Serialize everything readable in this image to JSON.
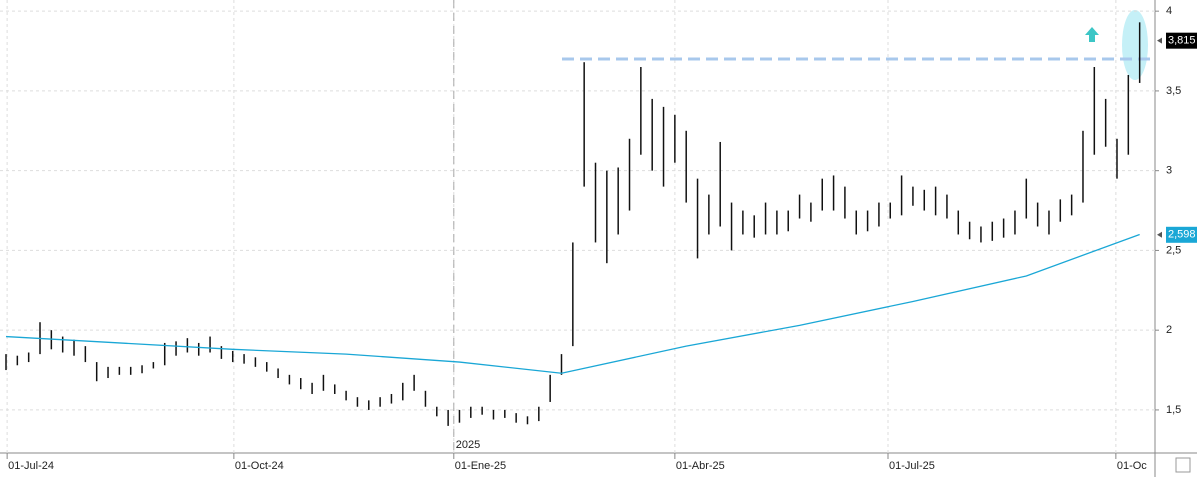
{
  "chart_data": {
    "type": "ohlc",
    "ylim": [
      1.23,
      4.07
    ],
    "yticks": [
      {
        "value": 1.5,
        "label": "1,5"
      },
      2,
      {
        "value": 2.5,
        "label": "2,5"
      },
      3,
      {
        "value": 3.5,
        "label": "3,5"
      },
      4
    ],
    "xlim": [
      0,
      101
    ],
    "xticks": [
      {
        "value": 0.1,
        "label": "01-Jul-24"
      },
      {
        "value": 20.1,
        "label": "01-Oct-24"
      },
      {
        "value": 39.5,
        "label": "01-Ene-25"
      },
      {
        "value": 59,
        "label": "01-Abr-25"
      },
      {
        "value": 77.8,
        "label": "01-Jul-25"
      },
      {
        "value": 97.9,
        "label": "01-Oc"
      }
    ],
    "year_marker": {
      "value": 39.5,
      "label": "2025"
    },
    "grid": true,
    "series": [
      {
        "color": "#111111",
        "low": [
          1.75,
          1.78,
          1.8,
          1.85,
          1.88,
          1.86,
          1.84,
          1.8,
          1.68,
          1.7,
          1.72,
          1.72,
          1.73,
          1.76,
          1.78,
          1.84,
          1.86,
          1.84,
          1.86,
          1.82,
          1.8,
          1.79,
          1.77,
          1.74,
          1.7,
          1.66,
          1.63,
          1.6,
          1.62,
          1.6,
          1.56,
          1.52,
          1.5,
          1.52,
          1.54,
          1.56,
          1.62,
          1.52,
          1.46,
          1.4,
          1.42,
          1.45,
          1.47,
          1.44,
          1.45,
          1.42,
          1.41,
          1.43,
          1.55,
          1.72,
          1.9,
          2.9,
          2.55,
          2.42,
          2.6,
          2.75,
          3.1,
          3.0,
          2.9,
          3.05,
          2.8,
          2.45,
          2.6,
          2.65,
          2.5,
          2.6,
          2.58,
          2.6,
          2.6,
          2.62,
          2.7,
          2.68,
          2.75,
          2.75,
          2.7,
          2.6,
          2.62,
          2.65,
          2.7,
          2.72,
          2.78,
          2.75,
          2.72,
          2.7,
          2.6,
          2.57,
          2.55,
          2.56,
          2.58,
          2.6,
          2.7,
          2.65,
          2.6,
          2.68,
          2.72,
          2.8,
          3.1,
          3.15,
          2.95,
          3.1,
          3.55
        ],
        "high": [
          1.85,
          1.84,
          1.86,
          2.05,
          2.0,
          1.96,
          1.94,
          1.9,
          1.8,
          1.77,
          1.77,
          1.77,
          1.78,
          1.8,
          1.92,
          1.93,
          1.95,
          1.92,
          1.96,
          1.9,
          1.87,
          1.85,
          1.83,
          1.8,
          1.76,
          1.72,
          1.7,
          1.67,
          1.72,
          1.66,
          1.62,
          1.58,
          1.56,
          1.58,
          1.6,
          1.67,
          1.72,
          1.62,
          1.52,
          1.5,
          1.5,
          1.52,
          1.52,
          1.5,
          1.5,
          1.48,
          1.46,
          1.52,
          1.72,
          1.85,
          2.55,
          3.68,
          3.05,
          3.0,
          3.02,
          3.2,
          3.65,
          3.45,
          3.4,
          3.35,
          3.25,
          2.95,
          2.85,
          3.18,
          2.8,
          2.75,
          2.72,
          2.8,
          2.75,
          2.75,
          2.85,
          2.8,
          2.95,
          2.97,
          2.9,
          2.75,
          2.75,
          2.8,
          2.8,
          2.97,
          2.9,
          2.88,
          2.9,
          2.85,
          2.75,
          2.68,
          2.65,
          2.68,
          2.7,
          2.75,
          2.95,
          2.8,
          2.75,
          2.82,
          2.85,
          3.25,
          3.65,
          3.45,
          3.2,
          3.6,
          3.93
        ]
      },
      {
        "color": "#1aa7d6",
        "x": [
          0,
          10,
          20,
          30,
          40,
          49,
          60,
          70,
          80,
          90,
          100
        ],
        "values": [
          1.96,
          1.92,
          1.88,
          1.85,
          1.8,
          1.73,
          1.9,
          2.03,
          2.18,
          2.34,
          2.6
        ]
      }
    ],
    "resistance": {
      "value": 3.7,
      "color": "#a8c8ec"
    },
    "price_labels": [
      {
        "value": 3.815,
        "label": "3,815",
        "color": "#000000"
      },
      {
        "value": 2.598,
        "label": "2,598",
        "color": "#1aa7d6"
      }
    ]
  }
}
